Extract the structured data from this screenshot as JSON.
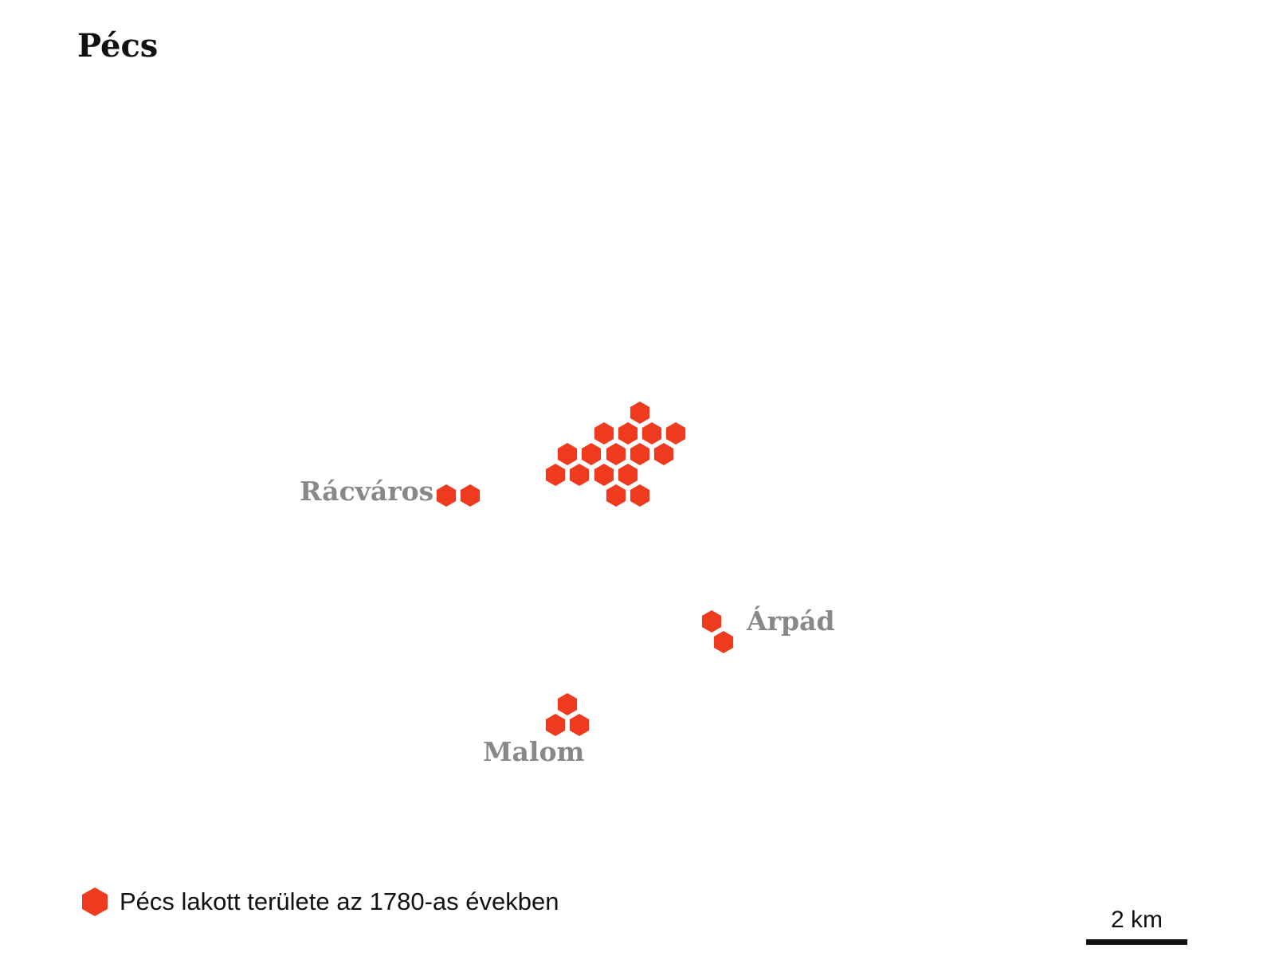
{
  "title": "Pécs",
  "colors": {
    "settlement_fill": "#ee3a1e",
    "label_text": "#888888",
    "text": "#111111"
  },
  "map": {
    "settlement_symbol": "hexagon-icon",
    "labels": {
      "racvaros": "Rácváros",
      "arpad": "Árpád",
      "malom": "Malom"
    }
  },
  "legend": {
    "icon": "hexagon-icon",
    "label": "Pécs lakott területe az 1780-as években"
  },
  "scale_bar": {
    "label": "2 km"
  }
}
